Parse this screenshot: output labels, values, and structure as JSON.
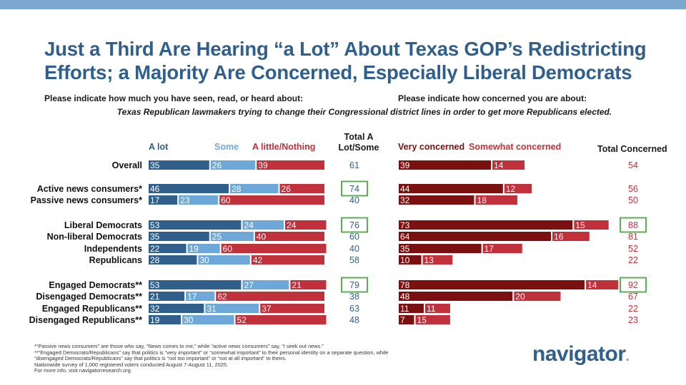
{
  "title": "Just a Third Are Hearing “a Lot” About Texas GOP’s Redistricting Efforts; a Majority Are Concerned, Especially Liberal Democrats",
  "question_left": "Please indicate how much you have seen, read, or heard about:",
  "question_right": "Please indicate how concerned you are about:",
  "subject": "Texas Republican lawmakers trying to change their Congressional district lines in order to get more Republicans elected.",
  "headers": {
    "a_lot": "A lot",
    "some": "Some",
    "little": "A little/Nothing",
    "total_a_lot_line1": "Total A",
    "total_a_lot_line2": "Lot/Some",
    "very": "Very concerned",
    "somewhat": "Somewhat concerned",
    "total_concerned": "Total Concerned"
  },
  "colors": {
    "a_lot": "#2f5f8a",
    "some": "#6ea8d8",
    "little": "#c0313c",
    "very": "#7b1010",
    "somewhat": "#c0313c",
    "highlight": "#5fae57",
    "title": "#2f5f8a"
  },
  "chart_data": {
    "type": "bar",
    "orientation": "horizontal-stacked",
    "categories": [
      "Overall",
      "Active news consumers*",
      "Passive news consumers*",
      "Liberal Democrats",
      "Non-liberal Democrats",
      "Independents",
      "Republicans",
      "Engaged Democrats**",
      "Disengaged Democrats**",
      "Engaged Republicans**",
      "Disengaged Republicans**"
    ],
    "awareness_series": [
      {
        "name": "A lot",
        "values": [
          35,
          46,
          17,
          53,
          35,
          22,
          28,
          53,
          21,
          32,
          19
        ]
      },
      {
        "name": "Some",
        "values": [
          26,
          28,
          23,
          24,
          25,
          19,
          30,
          27,
          17,
          31,
          30
        ]
      },
      {
        "name": "A little/Nothing",
        "values": [
          39,
          26,
          60,
          24,
          40,
          60,
          42,
          21,
          62,
          37,
          52
        ]
      }
    ],
    "total_a_lot_some": [
      61,
      74,
      40,
      76,
      60,
      40,
      58,
      79,
      38,
      63,
      48
    ],
    "concern_series": [
      {
        "name": "Very concerned",
        "values": [
          39,
          44,
          32,
          73,
          64,
          35,
          10,
          78,
          48,
          11,
          7
        ]
      },
      {
        "name": "Somewhat concerned",
        "values": [
          14,
          12,
          18,
          15,
          16,
          17,
          13,
          14,
          20,
          11,
          15
        ]
      }
    ],
    "total_concerned": [
      54,
      56,
      50,
      88,
      81,
      52,
      22,
      92,
      67,
      22,
      23
    ],
    "highlighted_total_a_lot_some": [
      "Active news consumers*",
      "Liberal Democrats",
      "Engaged Democrats**"
    ],
    "highlighted_total_concerned": [
      "Liberal Democrats",
      "Engaged Democrats**"
    ],
    "xlim": [
      0,
      100
    ]
  },
  "footnotes": [
    "*“Passive news consumers” are those who say, “News comes to me,” while “active news consumers” say, “I seek out news.”",
    "**“Engaged Democrats/Republicans” say that politics is “very important” or “somewhat important” to their personal identity on a separate question, while",
    "“disengaged Democrats/Republicans” say that politics is “not too important” or “not at all important” to theirs.",
    "Nationwide survey of 1,000 registered voters conducted August 7-August 11, 2025.",
    "For more info, visit navigatorresearch.org."
  ],
  "logo": "navigator",
  "logo_dot": "."
}
